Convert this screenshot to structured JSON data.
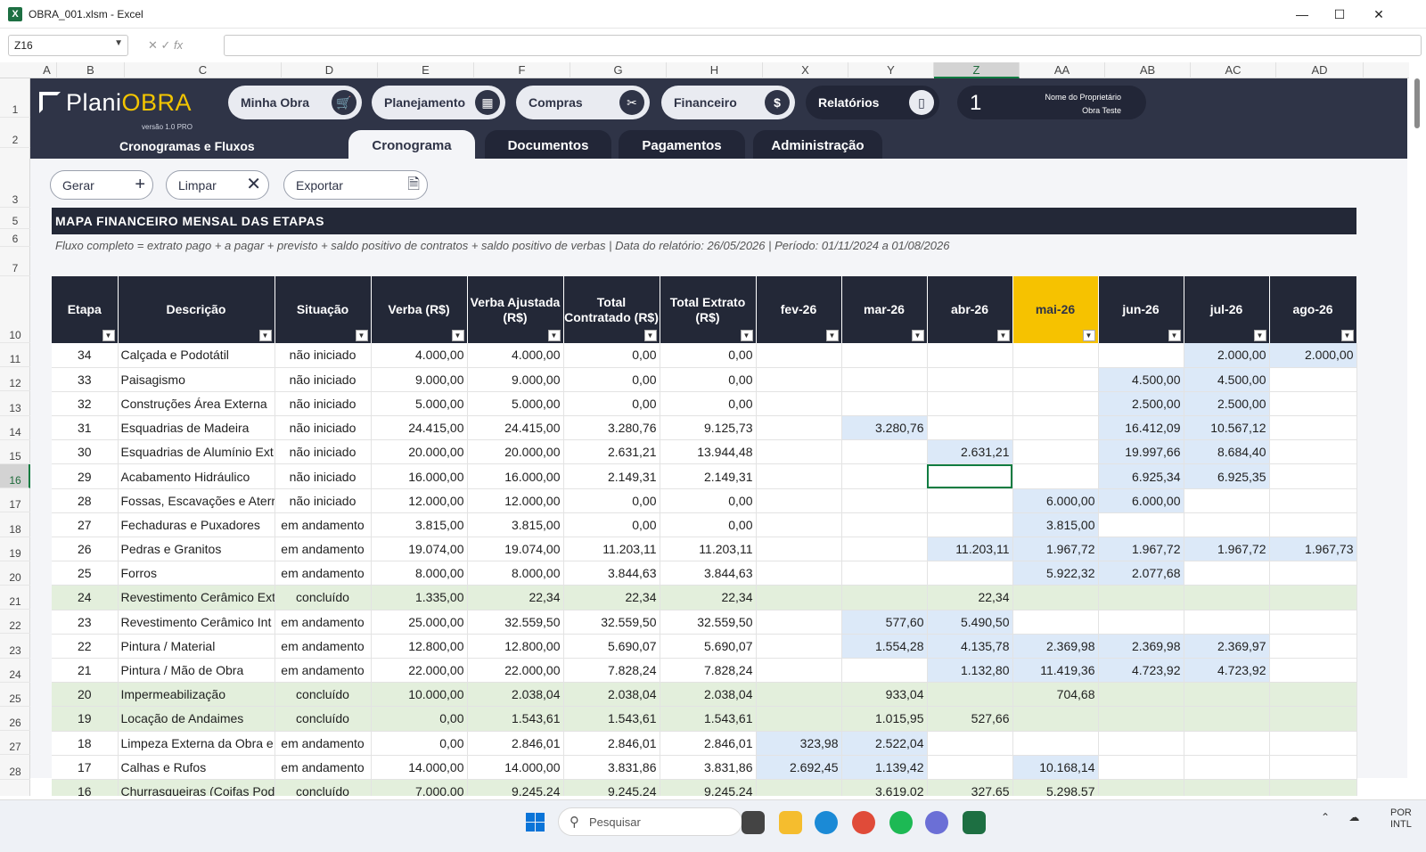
{
  "window": {
    "title": "OBRA_001.xlsm - Excel",
    "minimize": "—",
    "maximize": "☐",
    "close": "✕"
  },
  "formula_bar": {
    "cell_ref": "Z16",
    "fx": "fx",
    "value": ""
  },
  "columns": [
    "A",
    "B",
    "C",
    "D",
    "E",
    "F",
    "G",
    "H",
    "X",
    "Y",
    "Z",
    "AA",
    "AB",
    "AC",
    "AD"
  ],
  "row_numbers": [
    "1",
    "2",
    "3",
    "5",
    "6",
    "7",
    "10",
    "11",
    "12",
    "13",
    "14",
    "15",
    "16",
    "17",
    "18",
    "19",
    "20",
    "21",
    "22",
    "23",
    "24",
    "25",
    "26",
    "27",
    "28"
  ],
  "app": {
    "logo_plani": "Plani",
    "logo_obra": "OBRA",
    "version": "versão 1.0 PRO",
    "subtitle": "Cronogramas e Fluxos",
    "nav": [
      "Minha Obra",
      "Planejamento",
      "Compras",
      "Financeiro",
      "Relatórios"
    ],
    "owner": {
      "number": "1",
      "label": "Nome do Proprietário",
      "name": "Obra Teste"
    },
    "tabs": [
      "Cronograma",
      "Documentos",
      "Pagamentos",
      "Administração"
    ],
    "toolbar": {
      "gerar": "Gerar",
      "limpar": "Limpar",
      "exportar": "Exportar"
    }
  },
  "map": {
    "title": "MAPA FINANCEIRO MENSAL DAS ETAPAS",
    "subtitle": "Fluxo completo = extrato pago + a pagar + previsto + saldo positivo de contratos + saldo positivo de verbas  |  Data do relatório: 26/05/2026  |  Período: 01/11/2024 a 01/08/2026"
  },
  "table": {
    "headers": [
      "Etapa",
      "Descrição",
      "Situação",
      "Verba (R$)",
      "Verba Ajustada (R$)",
      "Total Contratado (R$)",
      "Total Extrato (R$)",
      "fev-26",
      "mar-26",
      "abr-26",
      "mai-26",
      "jun-26",
      "jul-26",
      "ago-26"
    ],
    "highlight_col": "mai-26",
    "rows": [
      {
        "etapa": "34",
        "desc": "Calçada e Podotátil",
        "sit": "não iniciado",
        "verba": "4.000,00",
        "ajust": "4.000,00",
        "contr": "0,00",
        "extr": "0,00",
        "m": [
          "",
          "",
          "",
          "",
          "",
          "2.000,00",
          "2.000,00"
        ],
        "done": false
      },
      {
        "etapa": "33",
        "desc": "Paisagismo",
        "sit": "não iniciado",
        "verba": "9.000,00",
        "ajust": "9.000,00",
        "contr": "0,00",
        "extr": "0,00",
        "m": [
          "",
          "",
          "",
          "",
          "4.500,00",
          "4.500,00",
          ""
        ],
        "done": false
      },
      {
        "etapa": "32",
        "desc": "Construções Área Externa",
        "sit": "não iniciado",
        "verba": "5.000,00",
        "ajust": "5.000,00",
        "contr": "0,00",
        "extr": "0,00",
        "m": [
          "",
          "",
          "",
          "",
          "2.500,00",
          "2.500,00",
          ""
        ],
        "done": false
      },
      {
        "etapa": "31",
        "desc": "Esquadrias de Madeira",
        "sit": "não iniciado",
        "verba": "24.415,00",
        "ajust": "24.415,00",
        "contr": "3.280,76",
        "extr": "9.125,73",
        "m": [
          "",
          "3.280,76",
          "",
          "",
          "16.412,09",
          "10.567,12",
          ""
        ],
        "done": false
      },
      {
        "etapa": "30",
        "desc": "Esquadrias de Alumínio Ext",
        "sit": "não iniciado",
        "verba": "20.000,00",
        "ajust": "20.000,00",
        "contr": "2.631,21",
        "extr": "13.944,48",
        "m": [
          "",
          "",
          "2.631,21",
          "",
          "19.997,66",
          "8.684,40",
          ""
        ],
        "done": false
      },
      {
        "etapa": "29",
        "desc": "Acabamento Hidráulico",
        "sit": "não iniciado",
        "verba": "16.000,00",
        "ajust": "16.000,00",
        "contr": "2.149,31",
        "extr": "2.149,31",
        "m": [
          "",
          "",
          "",
          "",
          "6.925,34",
          "6.925,35",
          ""
        ],
        "done": false
      },
      {
        "etapa": "28",
        "desc": "Fossas, Escavações e Aterr",
        "sit": "não iniciado",
        "verba": "12.000,00",
        "ajust": "12.000,00",
        "contr": "0,00",
        "extr": "0,00",
        "m": [
          "",
          "",
          "",
          "6.000,00",
          "6.000,00",
          "",
          ""
        ],
        "done": false
      },
      {
        "etapa": "27",
        "desc": "Fechaduras e Puxadores",
        "sit": "em andamento",
        "verba": "3.815,00",
        "ajust": "3.815,00",
        "contr": "0,00",
        "extr": "0,00",
        "m": [
          "",
          "",
          "",
          "3.815,00",
          "",
          "",
          ""
        ],
        "done": false
      },
      {
        "etapa": "26",
        "desc": "Pedras e Granitos",
        "sit": "em andamento",
        "verba": "19.074,00",
        "ajust": "19.074,00",
        "contr": "11.203,11",
        "extr": "11.203,11",
        "m": [
          "",
          "",
          "11.203,11",
          "1.967,72",
          "1.967,72",
          "1.967,72",
          "1.967,73"
        ],
        "done": false
      },
      {
        "etapa": "25",
        "desc": "Forros",
        "sit": "em andamento",
        "verba": "8.000,00",
        "ajust": "8.000,00",
        "contr": "3.844,63",
        "extr": "3.844,63",
        "m": [
          "",
          "",
          "",
          "5.922,32",
          "2.077,68",
          "",
          ""
        ],
        "done": false
      },
      {
        "etapa": "24",
        "desc": "Revestimento Cerâmico Ext",
        "sit": "concluído",
        "verba": "1.335,00",
        "ajust": "22,34",
        "contr": "22,34",
        "extr": "22,34",
        "m": [
          "",
          "",
          "22,34",
          "",
          "",
          "",
          ""
        ],
        "done": true
      },
      {
        "etapa": "23",
        "desc": "Revestimento Cerâmico Int",
        "sit": "em andamento",
        "verba": "25.000,00",
        "ajust": "32.559,50",
        "contr": "32.559,50",
        "extr": "32.559,50",
        "m": [
          "",
          "577,60",
          "5.490,50",
          "",
          "",
          "",
          ""
        ],
        "done": false
      },
      {
        "etapa": "22",
        "desc": "Pintura / Material",
        "sit": "em andamento",
        "verba": "12.800,00",
        "ajust": "12.800,00",
        "contr": "5.690,07",
        "extr": "5.690,07",
        "m": [
          "",
          "1.554,28",
          "4.135,78",
          "2.369,98",
          "2.369,98",
          "2.369,97",
          ""
        ],
        "done": false
      },
      {
        "etapa": "21",
        "desc": "Pintura / Mão de Obra",
        "sit": "em andamento",
        "verba": "22.000,00",
        "ajust": "22.000,00",
        "contr": "7.828,24",
        "extr": "7.828,24",
        "m": [
          "",
          "",
          "1.132,80",
          "11.419,36",
          "4.723,92",
          "4.723,92",
          ""
        ],
        "done": false
      },
      {
        "etapa": "20",
        "desc": "Impermeabilização",
        "sit": "concluído",
        "verba": "10.000,00",
        "ajust": "2.038,04",
        "contr": "2.038,04",
        "extr": "2.038,04",
        "m": [
          "",
          "933,04",
          "",
          "704,68",
          "",
          "",
          ""
        ],
        "done": true
      },
      {
        "etapa": "19",
        "desc": "Locação de Andaimes",
        "sit": "concluído",
        "verba": "0,00",
        "ajust": "1.543,61",
        "contr": "1.543,61",
        "extr": "1.543,61",
        "m": [
          "",
          "1.015,95",
          "527,66",
          "",
          "",
          "",
          ""
        ],
        "done": true
      },
      {
        "etapa": "18",
        "desc": "Limpeza Externa da Obra e",
        "sit": "em andamento",
        "verba": "0,00",
        "ajust": "2.846,01",
        "contr": "2.846,01",
        "extr": "2.846,01",
        "m": [
          "323,98",
          "2.522,04",
          "",
          "",
          "",
          "",
          ""
        ],
        "done": false
      },
      {
        "etapa": "17",
        "desc": "Calhas e Rufos",
        "sit": "em andamento",
        "verba": "14.000,00",
        "ajust": "14.000,00",
        "contr": "3.831,86",
        "extr": "3.831,86",
        "m": [
          "2.692,45",
          "1.139,42",
          "",
          "10.168,14",
          "",
          "",
          ""
        ],
        "done": false
      },
      {
        "etapa": "16",
        "desc": "Churrasqueiras (Coifas Pod",
        "sit": "concluído",
        "verba": "7.000,00",
        "ajust": "9.245,24",
        "contr": "9.245,24",
        "extr": "9.245,24",
        "m": [
          "",
          "3.619,02",
          "327,65",
          "5.298,57",
          "",
          "",
          ""
        ],
        "done": true
      }
    ]
  },
  "taskbar": {
    "search": "Pesquisar",
    "lang1": "POR",
    "lang2": "INTL"
  }
}
